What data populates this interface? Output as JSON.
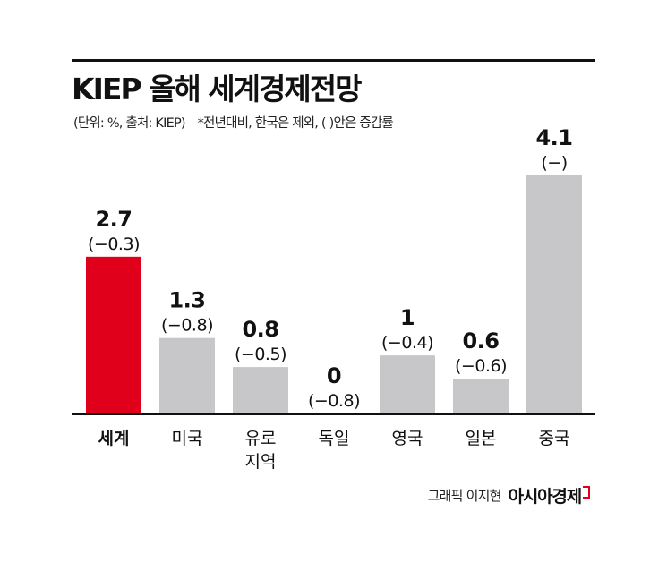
{
  "header": {
    "title": "KIEP 올해 세계경제전망",
    "source_note": "(단위: %, 출처: KIEP)",
    "footnote": "*전년대비, 한국은 제외, ( )안은 증감률"
  },
  "chart_data": {
    "type": "bar",
    "title": "KIEP 올해 세계경제전망",
    "xlabel": "",
    "ylabel": "",
    "unit": "%",
    "categories": [
      "세계",
      "미국",
      "유로 지역",
      "독일",
      "영국",
      "일본",
      "중국"
    ],
    "category_lines": [
      [
        "세계"
      ],
      [
        "미국"
      ],
      [
        "유로",
        "지역"
      ],
      [
        "독일"
      ],
      [
        "영국"
      ],
      [
        "일본"
      ],
      [
        "중국"
      ]
    ],
    "values": [
      2.7,
      1.3,
      0.8,
      0,
      1,
      0.6,
      4.1
    ],
    "value_labels": [
      "2.7",
      "1.3",
      "0.8",
      "0",
      "1",
      "0.6",
      "4.1"
    ],
    "change_labels": [
      "(−0.3)",
      "(−0.8)",
      "(−0.5)",
      "(−0.8)",
      "(−0.4)",
      "(−0.6)",
      "(−)"
    ],
    "highlight_index": 0,
    "colors": {
      "highlight": "#e0001b",
      "bar": "#c7c7c9",
      "text": "#111111",
      "axis": "#111111"
    },
    "ylim": [
      0,
      4.1
    ],
    "grid": false,
    "legend": "none"
  },
  "credit": {
    "graphic_by": "그래픽 이지현",
    "brand": "아시아경제"
  }
}
